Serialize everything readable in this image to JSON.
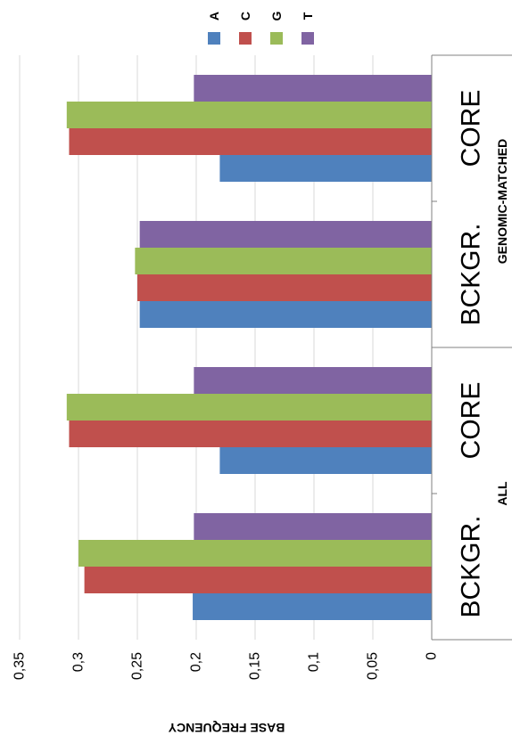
{
  "chart_data": {
    "type": "bar",
    "orientation": "horizontal-rotated",
    "categories": [
      "CORE",
      "BCKGR.",
      "CORE",
      "BCKGR."
    ],
    "groups": [
      {
        "label": "ALL",
        "categories": [
          "CORE",
          "BCKGR."
        ]
      },
      {
        "label": "GENOMIC-MATCHED",
        "categories": [
          "CORE",
          "BCKGR."
        ]
      }
    ],
    "series": [
      {
        "name": "A",
        "color": "#4F81BD",
        "values": [
          0.18,
          0.248,
          0.18,
          0.203
        ]
      },
      {
        "name": "C",
        "color": "#C0504D",
        "values": [
          0.308,
          0.25,
          0.308,
          0.295
        ]
      },
      {
        "name": "G",
        "color": "#9BBB59",
        "values": [
          0.31,
          0.252,
          0.31,
          0.3
        ]
      },
      {
        "name": "T",
        "color": "#8064A2",
        "values": [
          0.202,
          0.248,
          0.202,
          0.202
        ]
      }
    ],
    "ylabel": "BASE FREQUENCY",
    "ylim": [
      0,
      0.35
    ],
    "yticks": [
      "0",
      "0,05",
      "0,1",
      "0,15",
      "0,2",
      "0,25",
      "0,3",
      "0,35"
    ],
    "grid": true,
    "legend_position": "top"
  }
}
